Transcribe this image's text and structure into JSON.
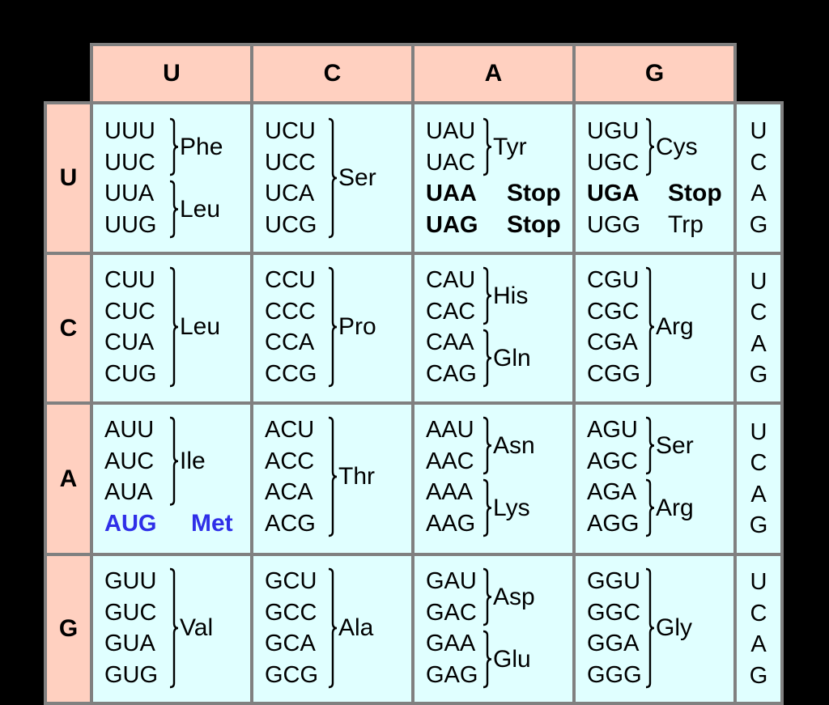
{
  "colors": {
    "background": "#000000",
    "header_fill": "#ffd0c0",
    "cell_fill": "#e0ffff",
    "border": "#808080",
    "start_codon": "#2f2fe8"
  },
  "column_headers": [
    "U",
    "C",
    "A",
    "G"
  ],
  "row_headers": [
    "U",
    "C",
    "A",
    "G"
  ],
  "third_position": [
    "U",
    "C",
    "A",
    "G"
  ],
  "rows": [
    {
      "first": "U",
      "cells": [
        {
          "codons": [
            "UUU",
            "UUC",
            "UUA",
            "UUG"
          ],
          "groups": [
            {
              "span": [
                0,
                1
              ],
              "aa": "Phe"
            },
            {
              "span": [
                2,
                3
              ],
              "aa": "Leu"
            }
          ]
        },
        {
          "codons": [
            "UCU",
            "UCC",
            "UCA",
            "UCG"
          ],
          "groups": [
            {
              "span": [
                0,
                3
              ],
              "aa": "Ser"
            }
          ]
        },
        {
          "codons": [
            "UAU",
            "UAC",
            "UAA",
            "UAG"
          ],
          "groups": [
            {
              "span": [
                0,
                1
              ],
              "aa": "Tyr"
            }
          ],
          "singles": [
            {
              "index": 2,
              "aa": "Stop",
              "style": "bold"
            },
            {
              "index": 3,
              "aa": "Stop",
              "style": "bold"
            }
          ]
        },
        {
          "codons": [
            "UGU",
            "UGC",
            "UGA",
            "UGG"
          ],
          "groups": [
            {
              "span": [
                0,
                1
              ],
              "aa": "Cys"
            }
          ],
          "singles": [
            {
              "index": 2,
              "aa": "Stop",
              "style": "bold"
            },
            {
              "index": 3,
              "aa": "Trp",
              "style": "normal"
            }
          ]
        }
      ]
    },
    {
      "first": "C",
      "cells": [
        {
          "codons": [
            "CUU",
            "CUC",
            "CUA",
            "CUG"
          ],
          "groups": [
            {
              "span": [
                0,
                3
              ],
              "aa": "Leu"
            }
          ]
        },
        {
          "codons": [
            "CCU",
            "CCC",
            "CCA",
            "CCG"
          ],
          "groups": [
            {
              "span": [
                0,
                3
              ],
              "aa": "Pro"
            }
          ]
        },
        {
          "codons": [
            "CAU",
            "CAC",
            "CAA",
            "CAG"
          ],
          "groups": [
            {
              "span": [
                0,
                1
              ],
              "aa": "His"
            },
            {
              "span": [
                2,
                3
              ],
              "aa": "Gln"
            }
          ]
        },
        {
          "codons": [
            "CGU",
            "CGC",
            "CGA",
            "CGG"
          ],
          "groups": [
            {
              "span": [
                0,
                3
              ],
              "aa": "Arg"
            }
          ]
        }
      ]
    },
    {
      "first": "A",
      "cells": [
        {
          "codons": [
            "AUU",
            "AUC",
            "AUA",
            "AUG"
          ],
          "groups": [
            {
              "span": [
                0,
                2
              ],
              "aa": "Ile"
            }
          ],
          "singles": [
            {
              "index": 3,
              "aa": "Met",
              "style": "start"
            }
          ]
        },
        {
          "codons": [
            "ACU",
            "ACC",
            "ACA",
            "ACG"
          ],
          "groups": [
            {
              "span": [
                0,
                3
              ],
              "aa": "Thr"
            }
          ]
        },
        {
          "codons": [
            "AAU",
            "AAC",
            "AAA",
            "AAG"
          ],
          "groups": [
            {
              "span": [
                0,
                1
              ],
              "aa": "Asn"
            },
            {
              "span": [
                2,
                3
              ],
              "aa": "Lys"
            }
          ]
        },
        {
          "codons": [
            "AGU",
            "AGC",
            "AGA",
            "AGG"
          ],
          "groups": [
            {
              "span": [
                0,
                1
              ],
              "aa": "Ser"
            },
            {
              "span": [
                2,
                3
              ],
              "aa": "Arg"
            }
          ]
        }
      ]
    },
    {
      "first": "G",
      "cells": [
        {
          "codons": [
            "GUU",
            "GUC",
            "GUA",
            "GUG"
          ],
          "groups": [
            {
              "span": [
                0,
                3
              ],
              "aa": "Val"
            }
          ]
        },
        {
          "codons": [
            "GCU",
            "GCC",
            "GCA",
            "GCG"
          ],
          "groups": [
            {
              "span": [
                0,
                3
              ],
              "aa": "Ala"
            }
          ]
        },
        {
          "codons": [
            "GAU",
            "GAC",
            "GAA",
            "GAG"
          ],
          "groups": [
            {
              "span": [
                0,
                1
              ],
              "aa": "Asp"
            },
            {
              "span": [
                2,
                3
              ],
              "aa": "Glu"
            }
          ]
        },
        {
          "codons": [
            "GGU",
            "GGC",
            "GGA",
            "GGG"
          ],
          "groups": [
            {
              "span": [
                0,
                3
              ],
              "aa": "Gly"
            }
          ]
        }
      ]
    }
  ]
}
